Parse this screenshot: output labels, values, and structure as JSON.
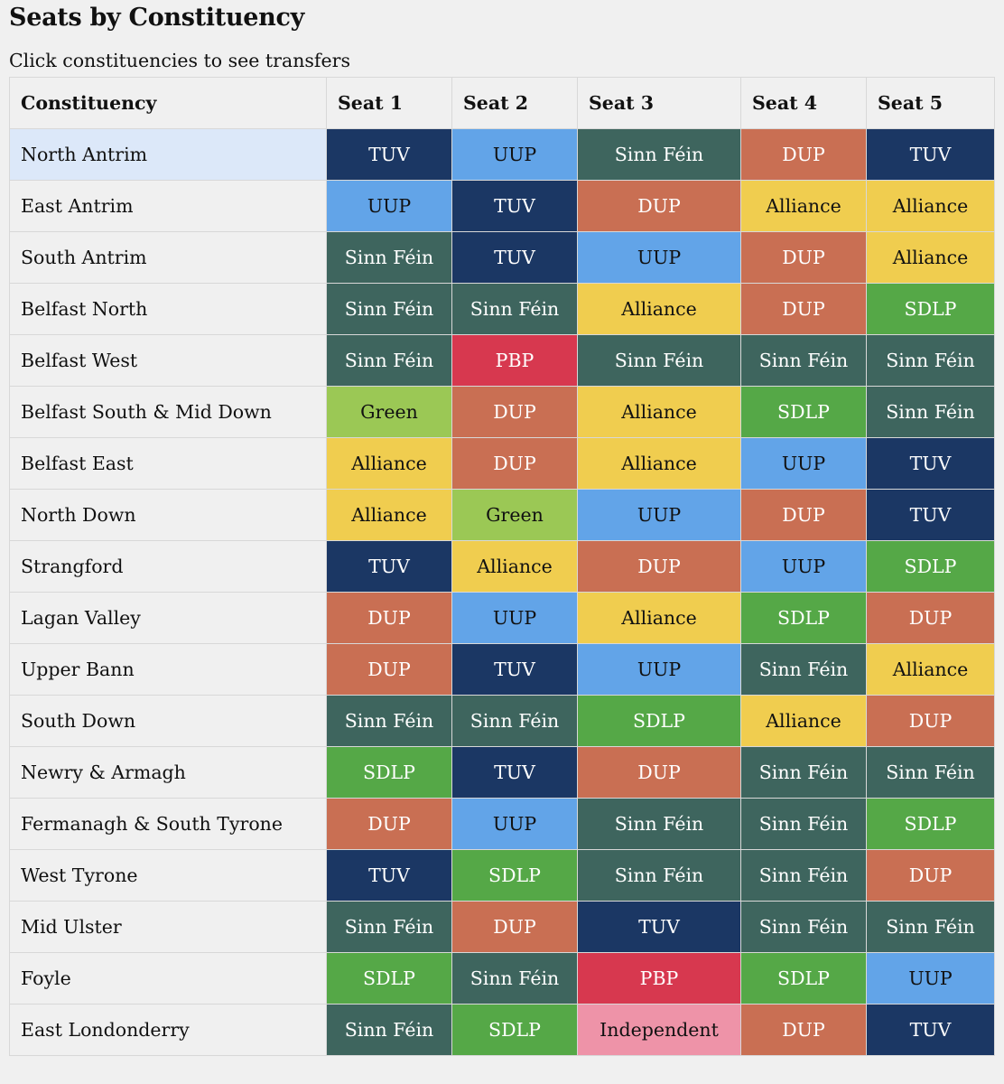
{
  "header": {
    "title": "Seats by Constituency",
    "subtitle": "Click constituencies to see transfers"
  },
  "table": {
    "columns": [
      "Constituency",
      "Seat 1",
      "Seat 2",
      "Seat 3",
      "Seat 4",
      "Seat 5"
    ],
    "selected_row": 0,
    "rows": [
      {
        "name": "North Antrim",
        "seats": [
          "TUV",
          "UUP",
          "Sinn Féin",
          "DUP",
          "TUV"
        ]
      },
      {
        "name": "East Antrim",
        "seats": [
          "UUP",
          "TUV",
          "DUP",
          "Alliance",
          "Alliance"
        ]
      },
      {
        "name": "South Antrim",
        "seats": [
          "Sinn Féin",
          "TUV",
          "UUP",
          "DUP",
          "Alliance"
        ]
      },
      {
        "name": "Belfast North",
        "seats": [
          "Sinn Féin",
          "Sinn Féin",
          "Alliance",
          "DUP",
          "SDLP"
        ]
      },
      {
        "name": "Belfast West",
        "seats": [
          "Sinn Féin",
          "PBP",
          "Sinn Féin",
          "Sinn Féin",
          "Sinn Féin"
        ]
      },
      {
        "name": "Belfast South & Mid Down",
        "seats": [
          "Green",
          "DUP",
          "Alliance",
          "SDLP",
          "Sinn Féin"
        ]
      },
      {
        "name": "Belfast East",
        "seats": [
          "Alliance",
          "DUP",
          "Alliance",
          "UUP",
          "TUV"
        ]
      },
      {
        "name": "North Down",
        "seats": [
          "Alliance",
          "Green",
          "UUP",
          "DUP",
          "TUV"
        ]
      },
      {
        "name": "Strangford",
        "seats": [
          "TUV",
          "Alliance",
          "DUP",
          "UUP",
          "SDLP"
        ]
      },
      {
        "name": "Lagan Valley",
        "seats": [
          "DUP",
          "UUP",
          "Alliance",
          "SDLP",
          "DUP"
        ]
      },
      {
        "name": "Upper Bann",
        "seats": [
          "DUP",
          "TUV",
          "UUP",
          "Sinn Féin",
          "Alliance"
        ]
      },
      {
        "name": "South Down",
        "seats": [
          "Sinn Féin",
          "Sinn Féin",
          "SDLP",
          "Alliance",
          "DUP"
        ]
      },
      {
        "name": "Newry & Armagh",
        "seats": [
          "SDLP",
          "TUV",
          "DUP",
          "Sinn Féin",
          "Sinn Féin"
        ]
      },
      {
        "name": "Fermanagh & South Tyrone",
        "seats": [
          "DUP",
          "UUP",
          "Sinn Féin",
          "Sinn Féin",
          "SDLP"
        ]
      },
      {
        "name": "West Tyrone",
        "seats": [
          "TUV",
          "SDLP",
          "Sinn Féin",
          "Sinn Féin",
          "DUP"
        ]
      },
      {
        "name": "Mid Ulster",
        "seats": [
          "Sinn Féin",
          "DUP",
          "TUV",
          "Sinn Féin",
          "Sinn Féin"
        ]
      },
      {
        "name": "Foyle",
        "seats": [
          "SDLP",
          "Sinn Féin",
          "PBP",
          "SDLP",
          "UUP"
        ]
      },
      {
        "name": "East Londonderry",
        "seats": [
          "Sinn Féin",
          "SDLP",
          "Independent",
          "DUP",
          "TUV"
        ]
      }
    ]
  },
  "party_colors": {
    "TUV": {
      "bg": "#1b3764",
      "text": "dark"
    },
    "UUP": {
      "bg": "#62a4e8",
      "text": "light"
    },
    "Sinn Féin": {
      "bg": "#3e655e",
      "text": "dark"
    },
    "DUP": {
      "bg": "#c96f53",
      "text": "dark"
    },
    "Alliance": {
      "bg": "#f0cd4f",
      "text": "light"
    },
    "SDLP": {
      "bg": "#55a847",
      "text": "dark"
    },
    "PBP": {
      "bg": "#d7384f",
      "text": "dark"
    },
    "Green": {
      "bg": "#9bc855",
      "text": "light"
    },
    "Independent": {
      "bg": "#ee93a8",
      "text": "light"
    }
  }
}
